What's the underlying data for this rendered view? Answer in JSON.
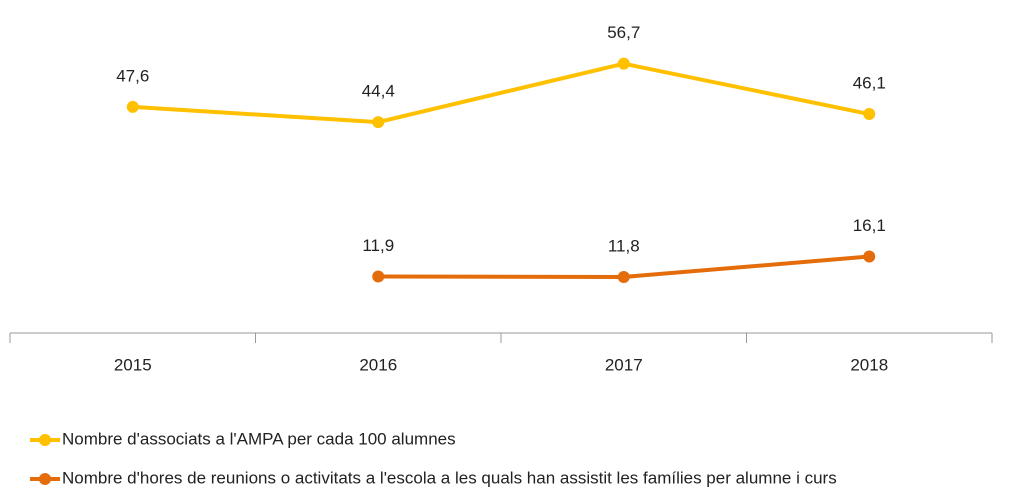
{
  "chart_data": {
    "type": "line",
    "categories": [
      "2015",
      "2016",
      "2017",
      "2018"
    ],
    "series": [
      {
        "name": "Nombre d'associats a l'AMPA per cada 100 alumnes",
        "color": "#ffc000",
        "values": [
          47.6,
          44.4,
          56.7,
          46.1
        ],
        "value_labels": [
          "47,6",
          "44,4",
          "56,7",
          "46,1"
        ]
      },
      {
        "name": "Nombre d'hores de reunions o activitats a l'escola a les quals han assistit les famílies per alumne i curs",
        "color": "#e46c0a",
        "values": [
          null,
          11.9,
          11.8,
          16.1
        ],
        "value_labels": [
          null,
          "11,9",
          "11,8",
          "16,1"
        ]
      }
    ],
    "ylim": [
      0,
      60
    ]
  }
}
